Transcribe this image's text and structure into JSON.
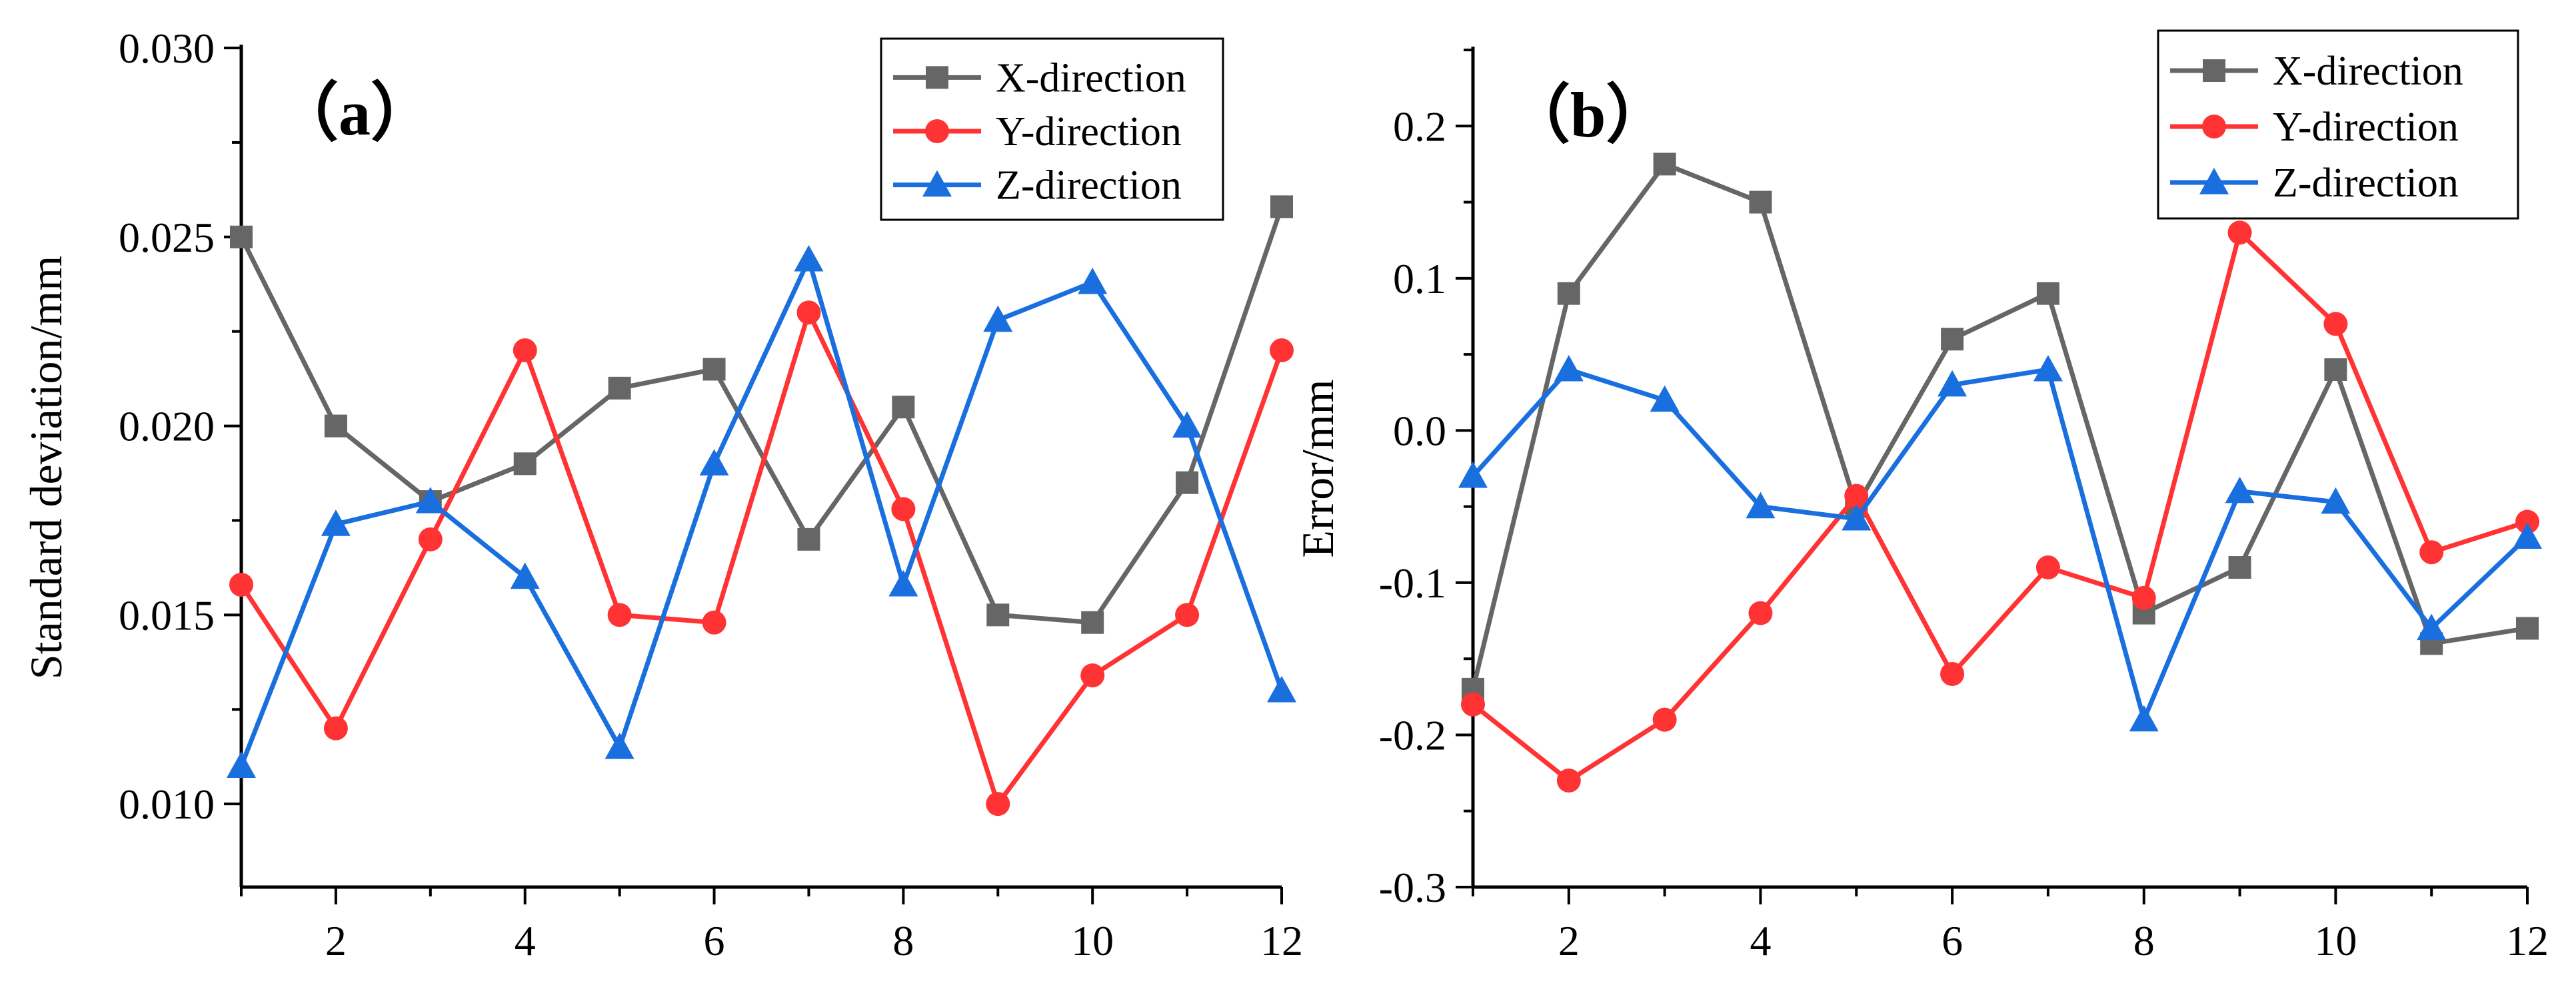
{
  "colors": {
    "x": "#666666",
    "y": "#ff3333",
    "z": "#1a6fdf",
    "axis": "#000000"
  },
  "chart_data": [
    {
      "type": "line",
      "panel_label": "（a）",
      "xlabel": "",
      "ylabel": "Standard deviation/mm",
      "xlim": [
        1,
        12
      ],
      "ylim": [
        0.0078,
        0.03
      ],
      "xticks": [
        2,
        4,
        6,
        8,
        10,
        12
      ],
      "yticks": [
        0.01,
        0.015,
        0.02,
        0.025,
        0.03
      ],
      "ytick_labels": [
        "0.010",
        "0.015",
        "0.020",
        "0.025",
        "0.030"
      ],
      "legend_position": "top-right",
      "x": [
        1,
        2,
        3,
        4,
        5,
        6,
        7,
        8,
        9,
        10,
        11,
        12
      ],
      "series": [
        {
          "name": "X-direction",
          "marker": "square",
          "values": [
            0.025,
            0.02,
            0.018,
            0.019,
            0.021,
            0.0215,
            0.017,
            0.0205,
            0.015,
            0.0148,
            0.0185,
            0.0258
          ]
        },
        {
          "name": "Y-direction",
          "marker": "circle",
          "values": [
            0.0158,
            0.012,
            0.017,
            0.022,
            0.015,
            0.0148,
            0.023,
            0.0178,
            0.01,
            0.0134,
            0.015,
            0.022
          ]
        },
        {
          "name": "Z-direction",
          "marker": "triangle",
          "values": [
            0.011,
            0.0174,
            0.018,
            0.016,
            0.0115,
            0.019,
            0.0244,
            0.0158,
            0.0228,
            0.0238,
            0.02,
            0.013
          ]
        }
      ]
    },
    {
      "type": "line",
      "panel_label": "（b）",
      "xlabel": "",
      "ylabel": "Error/mm",
      "xlim": [
        1,
        12
      ],
      "ylim": [
        -0.3,
        0.25
      ],
      "xticks": [
        2,
        4,
        6,
        8,
        10,
        12
      ],
      "yticks": [
        -0.3,
        -0.2,
        -0.1,
        0.0,
        0.1,
        0.2
      ],
      "ytick_labels": [
        "-0.3",
        "-0.2",
        "-0.1",
        "0.0",
        "0.1",
        "0.2"
      ],
      "legend_position": "top-right",
      "x": [
        1,
        2,
        3,
        4,
        5,
        6,
        7,
        8,
        9,
        10,
        11,
        12
      ],
      "series": [
        {
          "name": "X-direction",
          "marker": "square",
          "values": [
            -0.17,
            0.09,
            0.175,
            0.15,
            -0.05,
            0.06,
            0.09,
            -0.12,
            -0.09,
            0.04,
            -0.14,
            -0.13
          ]
        },
        {
          "name": "Y-direction",
          "marker": "circle",
          "values": [
            -0.18,
            -0.23,
            -0.19,
            -0.12,
            -0.043,
            -0.16,
            -0.09,
            -0.11,
            0.13,
            0.07,
            -0.08,
            -0.06
          ]
        },
        {
          "name": "Z-direction",
          "marker": "triangle",
          "values": [
            -0.03,
            0.04,
            0.02,
            -0.05,
            -0.058,
            0.03,
            0.04,
            -0.19,
            -0.04,
            -0.047,
            -0.13,
            -0.07
          ]
        }
      ]
    }
  ]
}
